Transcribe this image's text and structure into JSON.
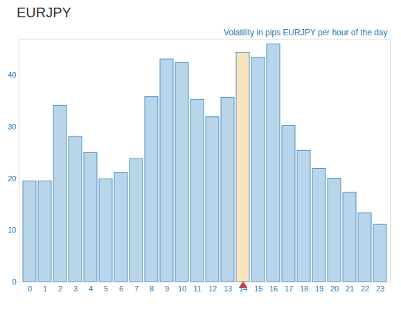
{
  "chart_data": {
    "type": "bar",
    "title": "EURJPY",
    "subtitle": "Volatility in pips EURJPY per hour of the day",
    "categories": [
      "0",
      "1",
      "2",
      "3",
      "4",
      "5",
      "6",
      "7",
      "8",
      "9",
      "10",
      "11",
      "12",
      "13",
      "14",
      "15",
      "16",
      "17",
      "18",
      "19",
      "20",
      "21",
      "22",
      "23"
    ],
    "values": [
      19.5,
      19.5,
      34.1,
      28.1,
      25.0,
      19.9,
      21.1,
      23.8,
      35.8,
      43.1,
      42.4,
      35.3,
      31.9,
      35.7,
      44.4,
      43.4,
      46.0,
      30.2,
      25.4,
      21.9,
      20.0,
      17.3,
      13.3,
      11.1
    ],
    "colors": [
      "#b9d5ea",
      "#b9d5ea",
      "#b9d5ea",
      "#b9d5ea",
      "#b9d5ea",
      "#b9d5ea",
      "#b9d5ea",
      "#b9d5ea",
      "#b9d5ea",
      "#b9d5ea",
      "#b9d5ea",
      "#b9d5ea",
      "#b9d5ea",
      "#b9d5ea",
      "#fbe3bd",
      "#b9d5ea",
      "#b9d5ea",
      "#b9d5ea",
      "#b9d5ea",
      "#b9d5ea",
      "#b9d5ea",
      "#b9d5ea",
      "#b9d5ea",
      "#b9d5ea"
    ],
    "ylim": [
      0,
      47
    ],
    "yticks": [
      0,
      10,
      20,
      30,
      40
    ],
    "grid": false
  }
}
